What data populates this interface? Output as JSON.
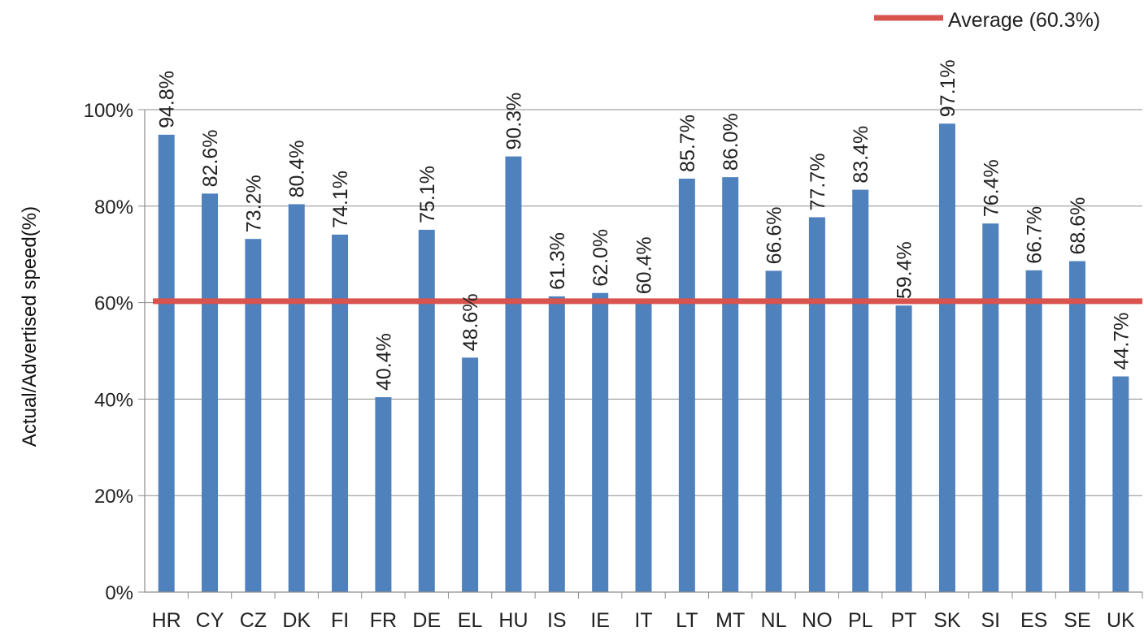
{
  "chart_data": {
    "type": "bar",
    "ylabel": "Actual/Advertised speed(%)",
    "ylim": [
      0,
      100
    ],
    "yticks": [
      0,
      20,
      40,
      60,
      80,
      100
    ],
    "ytick_labels": [
      "0%",
      "20%",
      "40%",
      "60%",
      "80%",
      "100%"
    ],
    "grid": true,
    "legend_position": "top-right",
    "categories": [
      "HR",
      "CY",
      "CZ",
      "DK",
      "FI",
      "FR",
      "DE",
      "EL",
      "HU",
      "IS",
      "IE",
      "IT",
      "LT",
      "MT",
      "NL",
      "NO",
      "PL",
      "PT",
      "SK",
      "SI",
      "ES",
      "SE",
      "UK"
    ],
    "values": [
      94.8,
      82.6,
      73.2,
      80.4,
      74.1,
      40.4,
      75.1,
      48.6,
      90.3,
      61.3,
      62.0,
      60.4,
      85.7,
      86.0,
      66.6,
      77.7,
      83.4,
      59.4,
      97.1,
      76.4,
      66.7,
      68.6,
      44.7
    ],
    "data_labels": [
      "94.8%",
      "82.6%",
      "73.2%",
      "80.4%",
      "74.1%",
      "40.4%",
      "75.1%",
      "48.6%",
      "90.3%",
      "61.3%",
      "62.0%",
      "60.4%",
      "85.7%",
      "86.0%",
      "66.6%",
      "77.7%",
      "83.4%",
      "59.4%",
      "97.1%",
      "76.4%",
      "66.7%",
      "68.6%",
      "44.7%"
    ],
    "reference_line": {
      "label": "Average (60.3%)",
      "value": 60.3
    },
    "colors": {
      "bar": "#4f81bd",
      "average_line": "#d9534f",
      "grid": "#8c8c8c"
    }
  }
}
